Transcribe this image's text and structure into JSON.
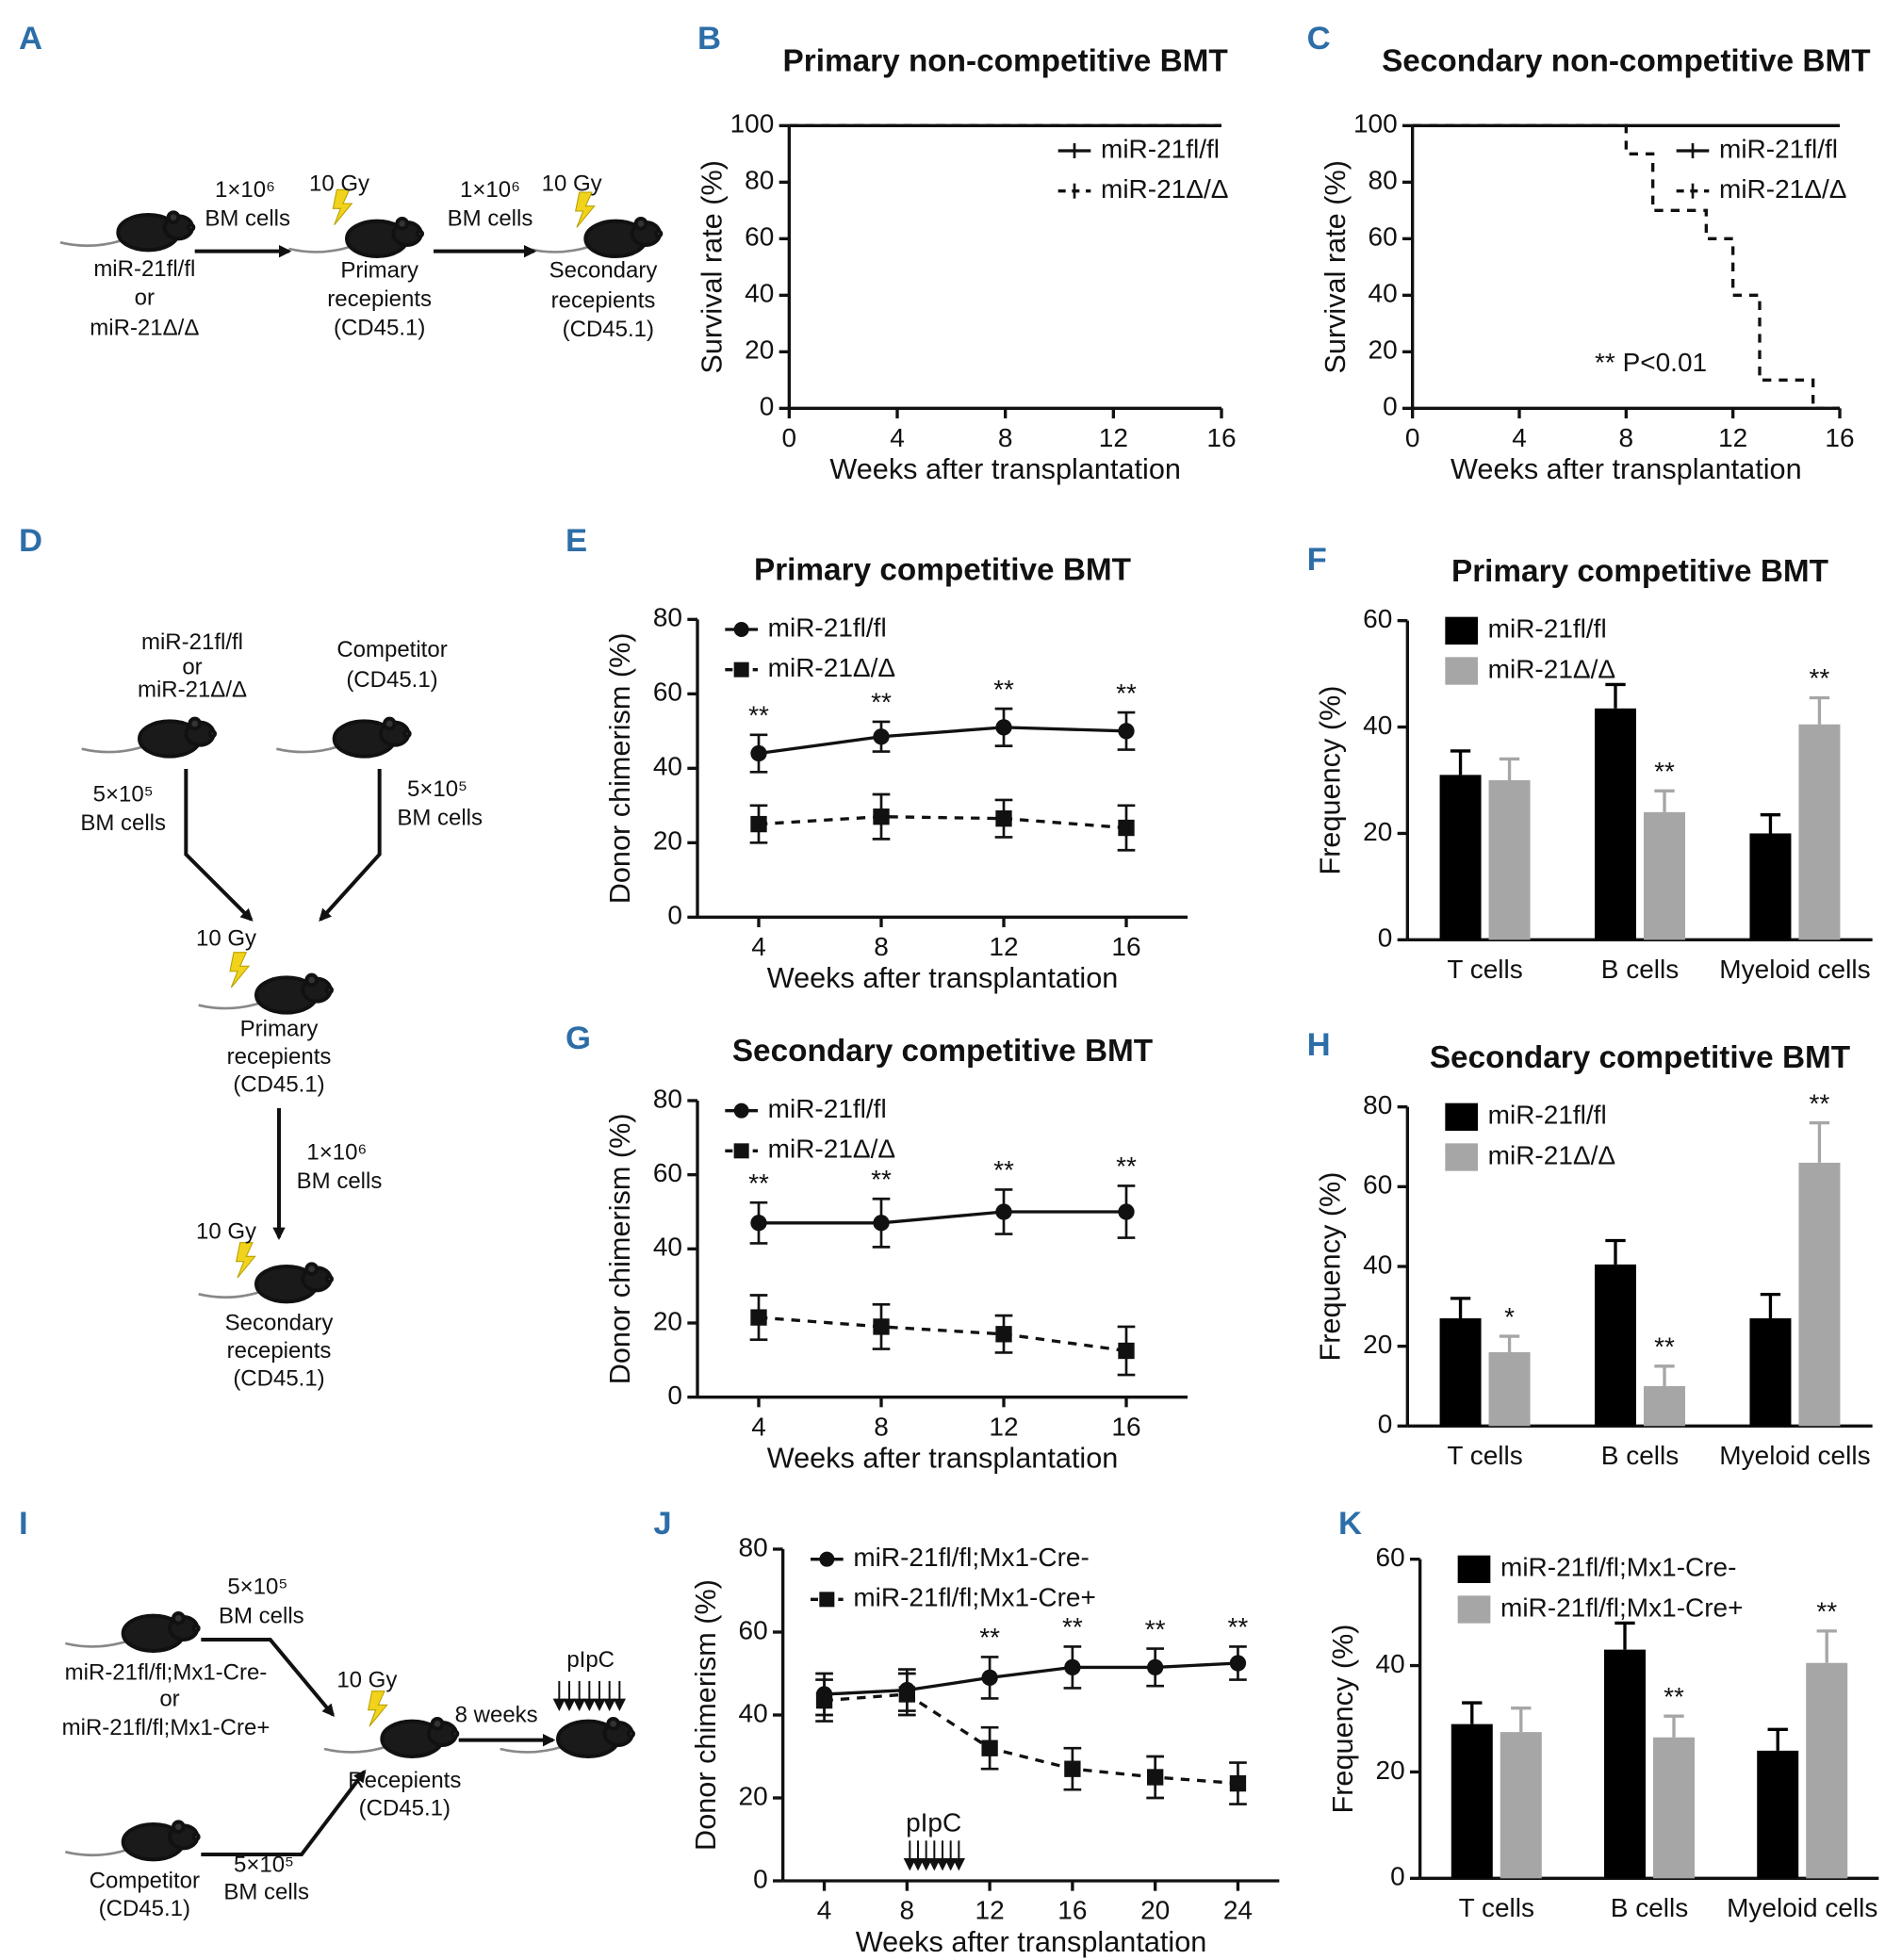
{
  "chart_data": [
    {
      "panel": "B",
      "type": "line",
      "step": true,
      "title": "Primary non-competitive BMT",
      "xlabel": "Weeks after transplantation",
      "ylabel": "Survival rate (%)",
      "xlim": [
        0,
        16
      ],
      "xticks": [
        0,
        4,
        8,
        12,
        16
      ],
      "ylim": [
        0,
        100
      ],
      "yticks": [
        0,
        20,
        40,
        60,
        80,
        100
      ],
      "legend": "upper right",
      "series": [
        {
          "name": "miR-21fl/fl",
          "color": "#111111",
          "style": "solid",
          "x": [
            0,
            16
          ],
          "values": [
            100,
            100
          ]
        },
        {
          "name": "miR-21Δ/Δ",
          "color": "#111111",
          "style": "dashed",
          "x": [
            0,
            16
          ],
          "values": [
            100,
            100
          ]
        }
      ]
    },
    {
      "panel": "C",
      "type": "line",
      "step": true,
      "title": "Secondary non-competitive BMT",
      "xlabel": "Weeks after transplantation",
      "ylabel": "Survival rate (%)",
      "xlim": [
        0,
        16
      ],
      "xticks": [
        0,
        4,
        8,
        12,
        16
      ],
      "ylim": [
        0,
        100
      ],
      "yticks": [
        0,
        20,
        40,
        60,
        80,
        100
      ],
      "legend": "upper right",
      "annotation": "** P<0.01",
      "series": [
        {
          "name": "miR-21fl/fl",
          "color": "#111111",
          "style": "solid",
          "x": [
            0,
            16
          ],
          "values": [
            100,
            100
          ]
        },
        {
          "name": "miR-21Δ/Δ",
          "color": "#111111",
          "style": "dashed",
          "x": [
            0,
            8,
            9,
            11,
            12,
            13,
            15
          ],
          "values": [
            100,
            90,
            70,
            60,
            40,
            10,
            0
          ]
        }
      ]
    },
    {
      "panel": "E",
      "type": "line",
      "title": "Primary competitive BMT",
      "xlabel": "Weeks after transplantation",
      "ylabel": "Donor chimerism (%)",
      "xlim": [
        2,
        18
      ],
      "xticks": [
        4,
        8,
        12,
        16
      ],
      "ylim": [
        0,
        80
      ],
      "yticks": [
        0,
        20,
        40,
        60,
        80
      ],
      "legend": "upper left",
      "x": [
        4,
        8,
        12,
        16
      ],
      "series": [
        {
          "name": "miR-21fl/fl",
          "color": "#111111",
          "style": "solid",
          "marker": "circle",
          "values": [
            44,
            48.5,
            51,
            50
          ],
          "errors": [
            5,
            4,
            5,
            5
          ],
          "annotations": [
            "**",
            "**",
            "**",
            "**"
          ]
        },
        {
          "name": "miR-21Δ/Δ",
          "color": "#111111",
          "style": "dashed",
          "marker": "square",
          "values": [
            25,
            27,
            26.5,
            24
          ],
          "errors": [
            5,
            6,
            5,
            6
          ]
        }
      ]
    },
    {
      "panel": "F",
      "type": "bar",
      "title": "Primary competitive BMT",
      "ylabel": "Frequency (%)",
      "categories": [
        "T cells",
        "B cells",
        "Myeloid cells"
      ],
      "ylim": [
        0,
        60
      ],
      "yticks": [
        0,
        20,
        40,
        60
      ],
      "legend": "upper left",
      "series": [
        {
          "name": "miR-21fl/fl",
          "color": "#000000",
          "values": [
            31,
            43.5,
            20
          ],
          "errors": [
            4.5,
            4.5,
            3.5
          ]
        },
        {
          "name": "miR-21Δ/Δ",
          "color": "#a6a6a6",
          "values": [
            30,
            24,
            40.5
          ],
          "errors": [
            4,
            4,
            5
          ],
          "annotations": [
            null,
            "**",
            "**"
          ]
        }
      ]
    },
    {
      "panel": "G",
      "type": "line",
      "title": "Secondary competitive BMT",
      "xlabel": "Weeks after transplantation",
      "ylabel": "Donor chimerism (%)",
      "xlim": [
        2,
        18
      ],
      "xticks": [
        4,
        8,
        12,
        16
      ],
      "ylim": [
        0,
        80
      ],
      "yticks": [
        0,
        20,
        40,
        60,
        80
      ],
      "legend": "upper left",
      "x": [
        4,
        8,
        12,
        16
      ],
      "series": [
        {
          "name": "miR-21fl/fl",
          "color": "#111111",
          "style": "solid",
          "marker": "circle",
          "values": [
            47,
            47,
            50,
            50
          ],
          "errors": [
            5.5,
            6.5,
            6,
            7
          ],
          "annotations": [
            "**",
            "**",
            "**",
            "**"
          ]
        },
        {
          "name": "miR-21Δ/Δ",
          "color": "#111111",
          "style": "dashed",
          "marker": "square",
          "values": [
            21.5,
            19,
            17,
            12.5
          ],
          "errors": [
            6,
            6,
            5,
            6.5
          ]
        }
      ]
    },
    {
      "panel": "H",
      "type": "bar",
      "title": "Secondary competitive BMT",
      "ylabel": "Frequency (%)",
      "categories": [
        "T cells",
        "B cells",
        "Myeloid cells"
      ],
      "ylim": [
        0,
        80
      ],
      "yticks": [
        0,
        20,
        40,
        60,
        80
      ],
      "legend": "upper left",
      "series": [
        {
          "name": "miR-21fl/fl",
          "color": "#000000",
          "values": [
            27,
            40.5,
            27
          ],
          "errors": [
            5,
            6,
            6
          ]
        },
        {
          "name": "miR-21Δ/Δ",
          "color": "#a6a6a6",
          "values": [
            18.5,
            10,
            66
          ],
          "errors": [
            4,
            5,
            10
          ],
          "annotations": [
            "*",
            "**",
            "**"
          ]
        }
      ]
    },
    {
      "panel": "J",
      "type": "line",
      "xlabel": "Weeks after transplantation",
      "ylabel": "Donor chimerism (%)",
      "annotation": "pIpC",
      "xlim": [
        2,
        26
      ],
      "xticks": [
        4,
        8,
        12,
        16,
        20,
        24
      ],
      "ylim": [
        0,
        80
      ],
      "yticks": [
        0,
        20,
        40,
        60,
        80
      ],
      "legend": "upper left",
      "x": [
        4,
        8,
        12,
        16,
        20,
        24
      ],
      "series": [
        {
          "name": "miR-21fl/fl;Mx1-Cre-",
          "color": "#111111",
          "style": "solid",
          "marker": "circle",
          "values": [
            45,
            46,
            49,
            51.5,
            51.5,
            52.5
          ],
          "errors": [
            5,
            5,
            5,
            5,
            4.5,
            4
          ],
          "annotations": [
            null,
            null,
            "**",
            "**",
            "**",
            "**"
          ]
        },
        {
          "name": "miR-21fl/fl;Mx1-Cre+",
          "color": "#111111",
          "style": "dashed",
          "marker": "square",
          "values": [
            43.5,
            45,
            32,
            27,
            25,
            23.5
          ],
          "errors": [
            5,
            5,
            5,
            5,
            5,
            5
          ]
        }
      ]
    },
    {
      "panel": "K",
      "type": "bar",
      "ylabel": "Frequency (%)",
      "categories": [
        "T cells",
        "B cells",
        "Myeloid cells"
      ],
      "ylim": [
        0,
        60
      ],
      "yticks": [
        0,
        20,
        40,
        60
      ],
      "legend": "upper left",
      "series": [
        {
          "name": "miR-21fl/fl;Mx1-Cre-",
          "color": "#000000",
          "values": [
            29,
            43,
            24
          ],
          "errors": [
            4,
            5,
            4
          ]
        },
        {
          "name": "miR-21fl/fl;Mx1-Cre+",
          "color": "#a6a6a6",
          "values": [
            27.5,
            26.5,
            40.5
          ],
          "errors": [
            4.5,
            4,
            6
          ],
          "annotations": [
            null,
            "**",
            "**"
          ]
        }
      ]
    }
  ],
  "diagrams": [
    {
      "panel": "A",
      "texts": [
        "miR-21fl/fl",
        "or",
        "miR-21Δ/Δ",
        "1×10⁶",
        "BM cells",
        "10 Gy",
        "Primary",
        "recepients",
        "(CD45.1)",
        "1×10⁶",
        "BM cells",
        "10 Gy",
        "Secondary",
        "recepients",
        "(CD45.1)"
      ]
    },
    {
      "panel": "D",
      "texts": [
        "miR-21fl/fl",
        "or",
        "miR-21Δ/Δ",
        "Competitor",
        "(CD45.1)",
        "5×10⁵",
        "BM cells",
        "5×10⁵",
        "BM cells",
        "10 Gy",
        "Primary",
        "recepients",
        "(CD45.1)",
        "1×10⁶",
        "BM cells",
        "10 Gy",
        "Secondary",
        "recepients",
        "(CD45.1)"
      ]
    },
    {
      "panel": "I",
      "texts": [
        "5×10⁵",
        "BM cells",
        "miR-21fl/fl;Mx1-Cre-",
        "or",
        "miR-21fl/fl;Mx1-Cre+",
        "10 Gy",
        "Recepients",
        "(CD45.1)",
        "8 weeks",
        "pIpC",
        "Competitor",
        "(CD45.1)",
        "5×10⁵",
        "BM cells"
      ]
    }
  ]
}
